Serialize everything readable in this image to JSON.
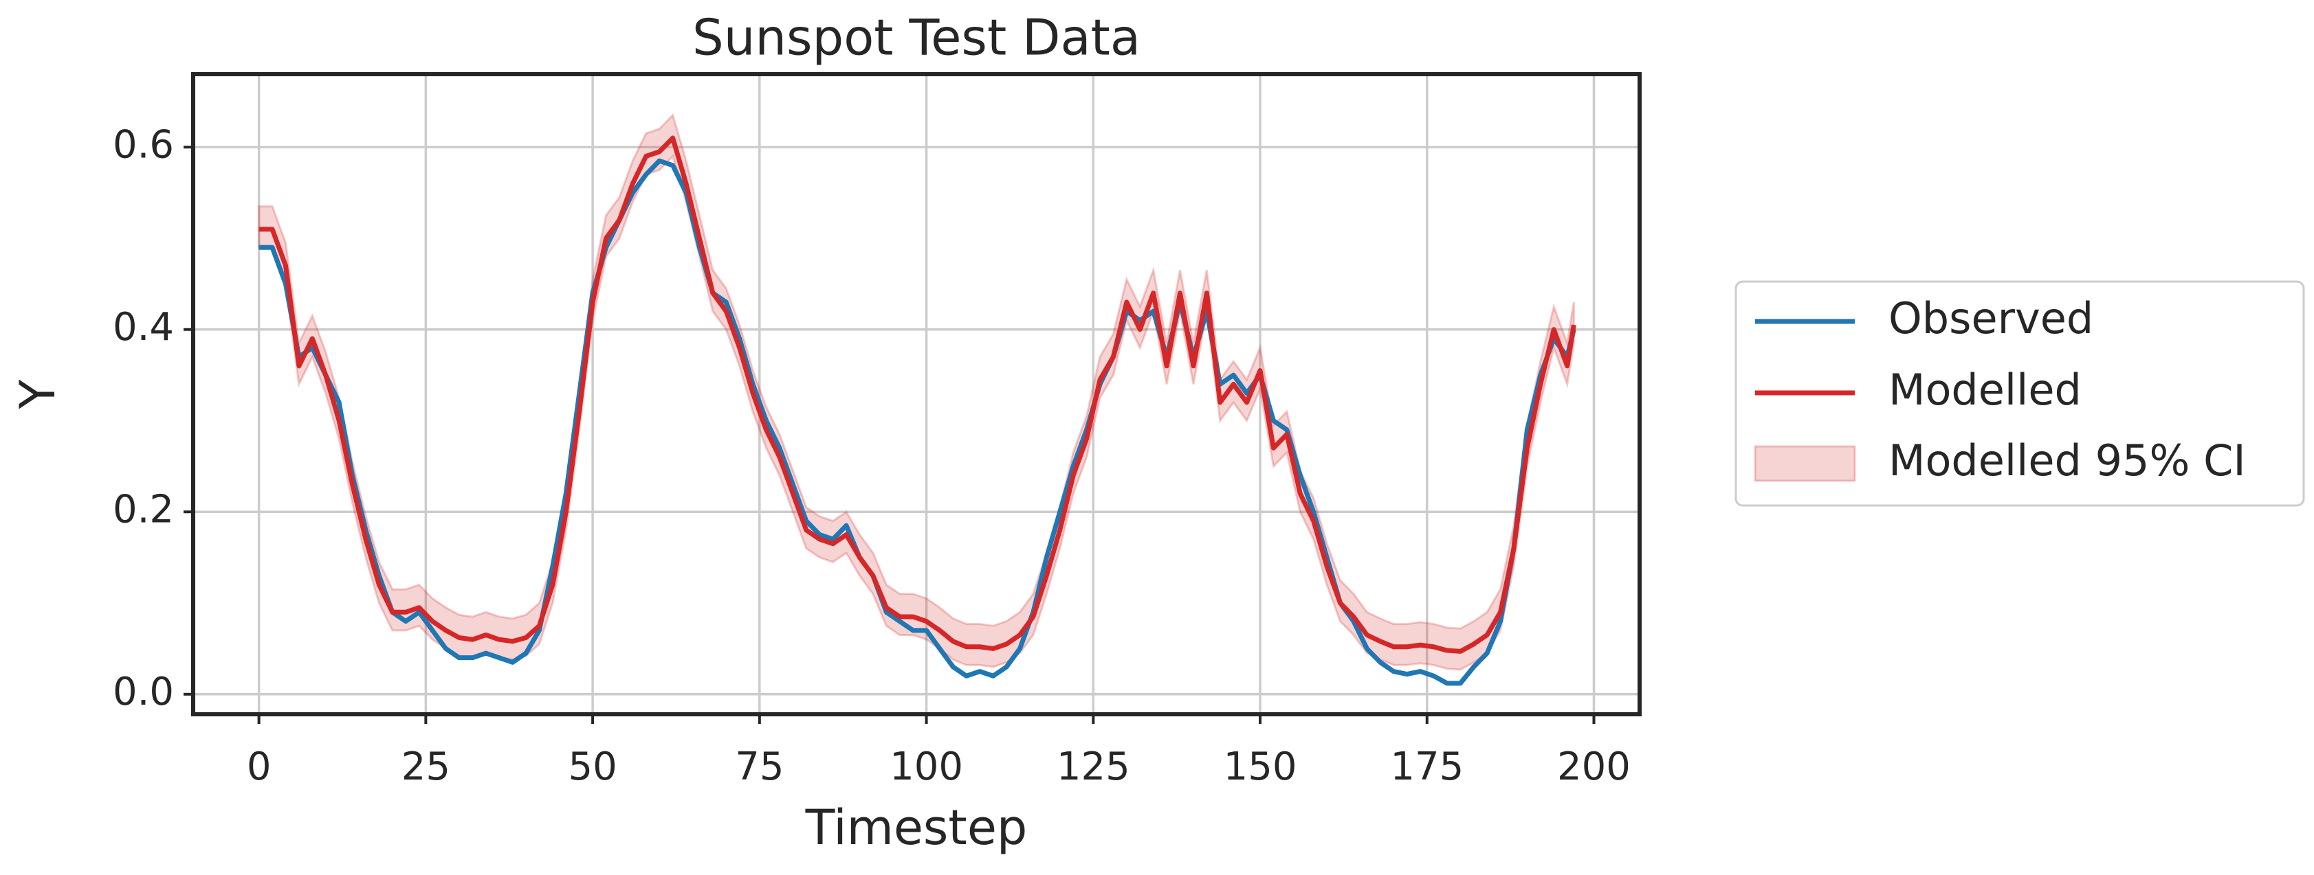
{
  "chart_data": {
    "type": "line",
    "title": "Sunspot Test Data",
    "x_label": "Timestep",
    "y_label": "Y",
    "x": [
      0,
      2,
      4,
      6,
      8,
      10,
      12,
      14,
      16,
      18,
      20,
      22,
      24,
      26,
      28,
      30,
      32,
      34,
      36,
      38,
      40,
      42,
      44,
      46,
      48,
      50,
      52,
      54,
      56,
      58,
      60,
      62,
      64,
      66,
      68,
      70,
      72,
      74,
      76,
      78,
      80,
      82,
      84,
      86,
      88,
      90,
      92,
      94,
      96,
      98,
      100,
      102,
      104,
      106,
      108,
      110,
      112,
      114,
      116,
      118,
      120,
      122,
      124,
      126,
      128,
      130,
      132,
      134,
      136,
      138,
      140,
      142,
      144,
      146,
      148,
      150,
      152,
      154,
      156,
      158,
      160,
      162,
      164,
      166,
      168,
      170,
      172,
      174,
      176,
      178,
      180,
      182,
      184,
      186,
      188,
      190,
      192,
      194,
      196,
      197
    ],
    "series": [
      {
        "name": "Observed",
        "color": "#1f77b4",
        "values": [
          0.49,
          0.49,
          0.45,
          0.37,
          0.38,
          0.35,
          0.32,
          0.24,
          0.18,
          0.13,
          0.09,
          0.08,
          0.09,
          0.07,
          0.05,
          0.04,
          0.04,
          0.045,
          0.04,
          0.035,
          0.045,
          0.07,
          0.14,
          0.22,
          0.33,
          0.44,
          0.49,
          0.52,
          0.55,
          0.57,
          0.585,
          0.58,
          0.55,
          0.49,
          0.44,
          0.43,
          0.39,
          0.34,
          0.3,
          0.27,
          0.23,
          0.19,
          0.175,
          0.17,
          0.185,
          0.15,
          0.13,
          0.09,
          0.08,
          0.07,
          0.07,
          0.05,
          0.03,
          0.02,
          0.025,
          0.02,
          0.03,
          0.05,
          0.09,
          0.15,
          0.2,
          0.25,
          0.29,
          0.34,
          0.37,
          0.42,
          0.41,
          0.42,
          0.37,
          0.43,
          0.37,
          0.42,
          0.34,
          0.35,
          0.33,
          0.35,
          0.3,
          0.29,
          0.24,
          0.2,
          0.15,
          0.1,
          0.08,
          0.05,
          0.035,
          0.025,
          0.022,
          0.025,
          0.02,
          0.012,
          0.012,
          0.03,
          0.045,
          0.08,
          0.16,
          0.29,
          0.35,
          0.39,
          0.37,
          0.4
        ]
      },
      {
        "name": "Modelled",
        "color": "#d62728",
        "values": [
          0.51,
          0.51,
          0.47,
          0.36,
          0.39,
          0.35,
          0.3,
          0.23,
          0.17,
          0.12,
          0.09,
          0.09,
          0.095,
          0.08,
          0.07,
          0.062,
          0.06,
          0.065,
          0.06,
          0.058,
          0.062,
          0.075,
          0.12,
          0.2,
          0.31,
          0.43,
          0.5,
          0.52,
          0.56,
          0.59,
          0.595,
          0.61,
          0.56,
          0.5,
          0.44,
          0.42,
          0.38,
          0.33,
          0.29,
          0.26,
          0.22,
          0.18,
          0.17,
          0.165,
          0.175,
          0.15,
          0.13,
          0.095,
          0.085,
          0.085,
          0.08,
          0.07,
          0.058,
          0.052,
          0.052,
          0.05,
          0.055,
          0.065,
          0.085,
          0.13,
          0.18,
          0.24,
          0.28,
          0.345,
          0.37,
          0.43,
          0.4,
          0.44,
          0.36,
          0.44,
          0.36,
          0.44,
          0.32,
          0.34,
          0.32,
          0.355,
          0.27,
          0.285,
          0.22,
          0.19,
          0.14,
          0.1,
          0.085,
          0.065,
          0.058,
          0.052,
          0.052,
          0.054,
          0.052,
          0.048,
          0.047,
          0.055,
          0.065,
          0.09,
          0.16,
          0.27,
          0.34,
          0.4,
          0.36,
          0.405
        ]
      }
    ],
    "band": {
      "name": "Modelled 95% CI",
      "color": "#d62728",
      "lower": [
        0.49,
        0.49,
        0.45,
        0.34,
        0.37,
        0.33,
        0.28,
        0.21,
        0.15,
        0.1,
        0.07,
        0.07,
        0.075,
        0.06,
        0.05,
        0.042,
        0.04,
        0.045,
        0.04,
        0.038,
        0.042,
        0.055,
        0.1,
        0.18,
        0.29,
        0.41,
        0.48,
        0.5,
        0.54,
        0.57,
        0.575,
        0.59,
        0.54,
        0.48,
        0.42,
        0.4,
        0.36,
        0.31,
        0.27,
        0.24,
        0.2,
        0.16,
        0.15,
        0.145,
        0.155,
        0.13,
        0.11,
        0.075,
        0.065,
        0.065,
        0.06,
        0.05,
        0.038,
        0.032,
        0.032,
        0.03,
        0.035,
        0.045,
        0.065,
        0.11,
        0.16,
        0.22,
        0.26,
        0.325,
        0.35,
        0.41,
        0.38,
        0.42,
        0.34,
        0.42,
        0.34,
        0.42,
        0.3,
        0.32,
        0.3,
        0.335,
        0.25,
        0.265,
        0.2,
        0.17,
        0.12,
        0.08,
        0.065,
        0.045,
        0.038,
        0.032,
        0.032,
        0.034,
        0.032,
        0.028,
        0.027,
        0.035,
        0.045,
        0.07,
        0.14,
        0.25,
        0.32,
        0.38,
        0.34,
        0.385
      ],
      "upper": [
        0.535,
        0.535,
        0.495,
        0.385,
        0.415,
        0.375,
        0.325,
        0.255,
        0.195,
        0.145,
        0.115,
        0.115,
        0.12,
        0.105,
        0.095,
        0.087,
        0.085,
        0.09,
        0.085,
        0.083,
        0.087,
        0.1,
        0.145,
        0.225,
        0.335,
        0.455,
        0.525,
        0.545,
        0.585,
        0.615,
        0.62,
        0.635,
        0.585,
        0.525,
        0.465,
        0.445,
        0.405,
        0.355,
        0.315,
        0.285,
        0.245,
        0.205,
        0.195,
        0.19,
        0.2,
        0.175,
        0.155,
        0.12,
        0.11,
        0.11,
        0.105,
        0.095,
        0.083,
        0.077,
        0.077,
        0.075,
        0.08,
        0.09,
        0.11,
        0.155,
        0.205,
        0.265,
        0.305,
        0.37,
        0.395,
        0.455,
        0.425,
        0.465,
        0.385,
        0.465,
        0.385,
        0.465,
        0.345,
        0.365,
        0.345,
        0.38,
        0.295,
        0.31,
        0.245,
        0.215,
        0.165,
        0.125,
        0.11,
        0.09,
        0.083,
        0.077,
        0.077,
        0.079,
        0.077,
        0.073,
        0.072,
        0.08,
        0.09,
        0.115,
        0.185,
        0.295,
        0.365,
        0.425,
        0.385,
        0.43
      ]
    },
    "xlim": [
      -9.85,
      206.85
    ],
    "ylim": [
      -0.022,
      0.68
    ],
    "xticks": [
      0,
      25,
      50,
      75,
      100,
      125,
      150,
      175,
      200
    ],
    "yticks": [
      {
        "value": 0,
        "label": "0.0"
      },
      0.2,
      0.4,
      0.6
    ],
    "grid": true,
    "legend": "outside right"
  }
}
